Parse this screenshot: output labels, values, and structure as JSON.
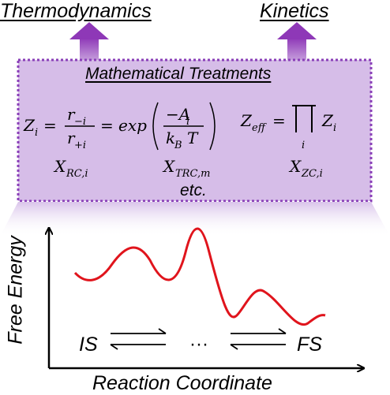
{
  "headings": {
    "thermodynamics": "Thermodynamics",
    "kinetics": "Kinetics"
  },
  "box": {
    "title": "Mathematical Treatments",
    "etc": "etc.",
    "colors": {
      "fill": "#d6bde8",
      "border": "#8a3fb8",
      "arrow": "#8e38b7"
    }
  },
  "equations": {
    "zi_lhs": "Z",
    "zi_sub": "i",
    "frac_num": "r",
    "frac_num_sub": "−i",
    "frac_den": "r",
    "frac_den_sub": "+i",
    "equals": "=",
    "exp": "exp",
    "inner_num": "−A",
    "inner_num_sub": "i",
    "inner_den": "k",
    "inner_den_sub": "B",
    "inner_den_T": "T",
    "zeff": "Z",
    "zeff_sub": "eff",
    "prod_sub": "i",
    "zi_rhs": "Z",
    "zi_rhs_sub": "i",
    "x1": "X",
    "x1_sub": "RC,i",
    "x2": "X",
    "x2_sub": "TRC,m",
    "x3": "X",
    "x3_sub": "ZC,i"
  },
  "plot": {
    "y_axis_label": "Free Energy",
    "x_axis_label": "Reaction Coordinate",
    "initial_state": "IS",
    "final_state": "FS",
    "ellipsis": "···",
    "curve_color": "#e0141c"
  }
}
